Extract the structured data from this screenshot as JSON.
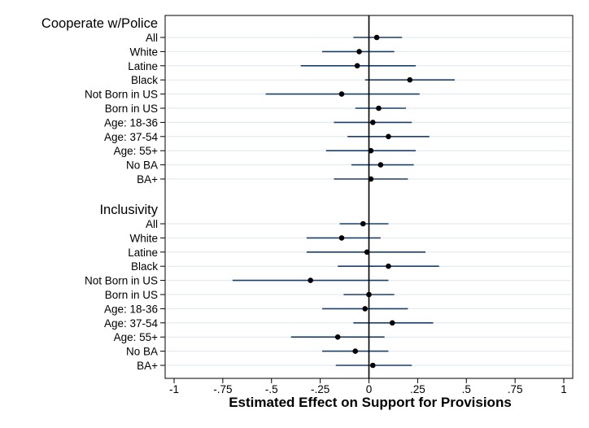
{
  "chart_data": {
    "type": "scatter",
    "subtype": "coefficient-plot-with-confidence-intervals",
    "xlabel": "Estimated Effect on Support for Provisions",
    "xlim": [
      -1,
      1
    ],
    "xticks": [
      "-1",
      "-.75",
      "-.5",
      "-.25",
      "0",
      ".25",
      ".5",
      ".75",
      "1"
    ],
    "xtick_values": [
      -1,
      -0.75,
      -0.5,
      -0.25,
      0,
      0.25,
      0.5,
      0.75,
      1
    ],
    "reference_line": 0,
    "grid": true,
    "groups": [
      {
        "title": "Cooperate w/Police",
        "rows": [
          {
            "label": "All",
            "estimate": 0.04,
            "ci": [
              -0.08,
              0.17
            ]
          },
          {
            "label": "White",
            "estimate": -0.05,
            "ci": [
              -0.24,
              0.13
            ]
          },
          {
            "label": "Latine",
            "estimate": -0.06,
            "ci": [
              -0.35,
              0.24
            ]
          },
          {
            "label": "Black",
            "estimate": 0.21,
            "ci": [
              -0.02,
              0.44
            ]
          },
          {
            "label": "Not Born in US",
            "estimate": -0.14,
            "ci": [
              -0.53,
              0.26
            ]
          },
          {
            "label": "Born in US",
            "estimate": 0.05,
            "ci": [
              -0.07,
              0.19
            ]
          },
          {
            "label": "Age: 18-36",
            "estimate": 0.02,
            "ci": [
              -0.18,
              0.22
            ]
          },
          {
            "label": "Age: 37-54",
            "estimate": 0.1,
            "ci": [
              -0.11,
              0.31
            ]
          },
          {
            "label": "Age: 55+",
            "estimate": 0.01,
            "ci": [
              -0.22,
              0.24
            ]
          },
          {
            "label": "No BA",
            "estimate": 0.06,
            "ci": [
              -0.09,
              0.23
            ]
          },
          {
            "label": "BA+",
            "estimate": 0.01,
            "ci": [
              -0.18,
              0.2
            ]
          }
        ]
      },
      {
        "title": "Inclusivity",
        "rows": [
          {
            "label": "All",
            "estimate": -0.03,
            "ci": [
              -0.15,
              0.1
            ]
          },
          {
            "label": "White",
            "estimate": -0.14,
            "ci": [
              -0.32,
              0.06
            ]
          },
          {
            "label": "Latine",
            "estimate": -0.01,
            "ci": [
              -0.32,
              0.29
            ]
          },
          {
            "label": "Black",
            "estimate": 0.1,
            "ci": [
              -0.16,
              0.36
            ]
          },
          {
            "label": "Not Born in US",
            "estimate": -0.3,
            "ci": [
              -0.7,
              0.1
            ]
          },
          {
            "label": "Born in US",
            "estimate": 0.0,
            "ci": [
              -0.13,
              0.13
            ]
          },
          {
            "label": "Age: 18-36",
            "estimate": -0.02,
            "ci": [
              -0.24,
              0.2
            ]
          },
          {
            "label": "Age: 37-54",
            "estimate": 0.12,
            "ci": [
              -0.08,
              0.33
            ]
          },
          {
            "label": "Age: 55+",
            "estimate": -0.16,
            "ci": [
              -0.4,
              0.08
            ]
          },
          {
            "label": "No BA",
            "estimate": -0.07,
            "ci": [
              -0.24,
              0.1
            ]
          },
          {
            "label": "BA+",
            "estimate": 0.02,
            "ci": [
              -0.17,
              0.22
            ]
          }
        ]
      }
    ]
  },
  "colors": {
    "ci_line": "#1a3f6b",
    "point": "#000000",
    "grid": "#dde7ec",
    "zero_line": "#000000"
  }
}
